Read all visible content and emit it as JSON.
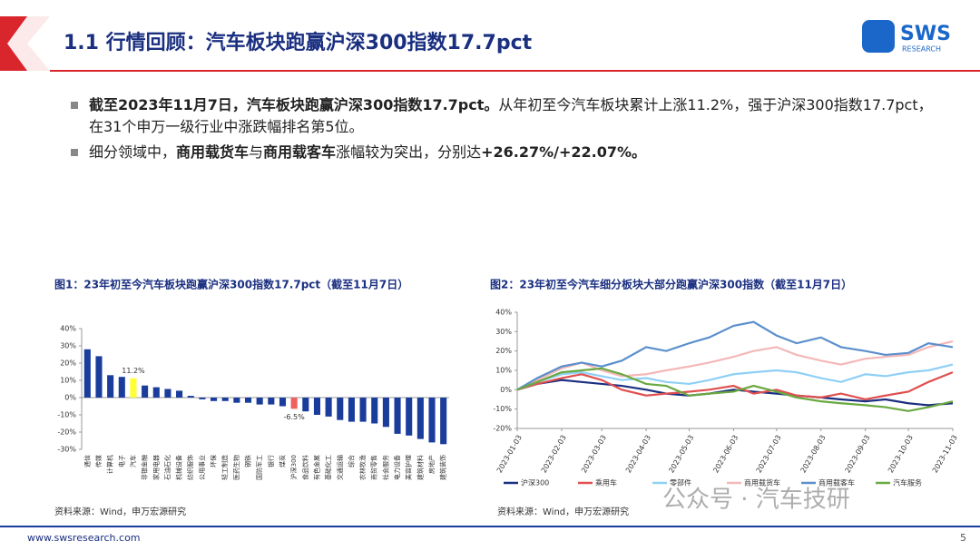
{
  "header": {
    "title": "1.1 行情回顾：汽车板块跑赢沪深300指数17.7pct",
    "logo": "SWS",
    "logo_sub": "RESEARCH"
  },
  "bullets": [
    {
      "segments": [
        {
          "text": "截至2023年11月7日，汽车板块跑赢沪深300指数17.7pct。",
          "bold": true
        },
        {
          "text": "从年初至今汽车板块累计上涨11.2%，强于沪深300指数17.7pct，在31个申万一级行业中涨跌幅排名第5位。",
          "bold": false
        }
      ]
    },
    {
      "segments": [
        {
          "text": "细分领域中，",
          "bold": false
        },
        {
          "text": "商用载货车",
          "bold": true
        },
        {
          "text": "与",
          "bold": false
        },
        {
          "text": "商用载客车",
          "bold": true
        },
        {
          "text": "涨幅较为突出，分别达",
          "bold": false
        },
        {
          "text": "+26.27%/+22.07%。",
          "bold": true
        }
      ]
    }
  ],
  "chart_data": [
    {
      "type": "bar",
      "title": "图1：23年初至今汽车板块跑赢沪深300指数17.7pct（截至11月7日）",
      "source": "资料来源：Wind，申万宏源研究",
      "categories": [
        "通信",
        "传媒",
        "计算机",
        "电子",
        "汽车",
        "非银金融",
        "家用电器",
        "石油石化",
        "机械设备",
        "纺织服饰",
        "公用事业",
        "环保",
        "轻工制造",
        "医药生物",
        "钢铁",
        "国防军工",
        "银行",
        "煤炭",
        "沪深300",
        "食品饮料",
        "有色金属",
        "基础化工",
        "交通运输",
        "综合",
        "农林牧渔",
        "商贸零售",
        "社会服务",
        "电力设备",
        "美容护理",
        "建筑材料",
        "房地产",
        "建筑装饰"
      ],
      "values": [
        28,
        24,
        13,
        12,
        11.2,
        7,
        6,
        5,
        4,
        1,
        -1,
        -2,
        -2,
        -3,
        -3,
        -4,
        -4,
        -5,
        -6.5,
        -8,
        -10,
        -11,
        -13,
        -14,
        -14,
        -15,
        -17,
        -21,
        -22,
        -24,
        -26,
        -27
      ],
      "value_labels": [
        null,
        null,
        null,
        null,
        "11.2%",
        null,
        null,
        null,
        null,
        null,
        null,
        null,
        null,
        null,
        null,
        null,
        null,
        null,
        "-6.5%",
        null,
        null,
        null,
        null,
        null,
        null,
        null,
        null,
        null,
        null,
        null,
        null,
        null
      ],
      "colors": [
        "#1a3d9c",
        "#1a3d9c",
        "#1a3d9c",
        "#1a3d9c",
        "#ffff33",
        "#1a3d9c",
        "#1a3d9c",
        "#1a3d9c",
        "#1a3d9c",
        "#1a3d9c",
        "#1a3d9c",
        "#1a3d9c",
        "#1a3d9c",
        "#1a3d9c",
        "#1a3d9c",
        "#1a3d9c",
        "#1a3d9c",
        "#1a3d9c",
        "#f06060",
        "#1a3d9c",
        "#1a3d9c",
        "#1a3d9c",
        "#1a3d9c",
        "#1a3d9c",
        "#1a3d9c",
        "#1a3d9c",
        "#1a3d9c",
        "#1a3d9c",
        "#1a3d9c",
        "#1a3d9c",
        "#1a3d9c",
        "#1a3d9c"
      ],
      "ylim": [
        -30,
        40
      ],
      "yticks": [
        {
          "value": -30,
          "label": "-30%"
        },
        {
          "value": -20,
          "label": "-20%"
        },
        {
          "value": -10,
          "label": "-10%"
        },
        {
          "value": 0,
          "label": "0%"
        },
        {
          "value": 10,
          "label": "10%"
        },
        {
          "value": 20,
          "label": "20%"
        },
        {
          "value": 30,
          "label": "30%"
        },
        {
          "value": 40,
          "label": "40%"
        }
      ]
    },
    {
      "type": "line",
      "title": "图2：23年初至今汽车细分板块大部分跑赢沪深300指数（截至11月7日）",
      "source": "资料来源：Wind，申万宏源研究",
      "x": [
        "2023-01-03",
        "2023-01-17",
        "2023-02-03",
        "2023-02-17",
        "2023-03-03",
        "2023-03-17",
        "2023-04-03",
        "2023-04-17",
        "2023-05-03",
        "2023-05-17",
        "2023-06-03",
        "2023-06-17",
        "2023-07-03",
        "2023-07-17",
        "2023-08-03",
        "2023-08-17",
        "2023-09-03",
        "2023-09-17",
        "2023-10-03",
        "2023-10-17",
        "2023-11-03"
      ],
      "xlim": [
        "2023-01-03",
        "2023-11-03"
      ],
      "xticks": [
        "2023-01-03",
        "2023-02-03",
        "2023-03-03",
        "2023-04-03",
        "2023-05-03",
        "2023-06-03",
        "2023-07-03",
        "2023-08-03",
        "2023-09-03",
        "2023-10-03",
        "2023-11-03"
      ],
      "series": [
        {
          "name": "沪深300",
          "color": "#1a2f80",
          "values": [
            0,
            3,
            5,
            4,
            3,
            2,
            0,
            -2,
            -3,
            -2,
            0,
            -1,
            -2,
            -3,
            -4,
            -5,
            -6,
            -5,
            -7,
            -8,
            -7
          ]
        },
        {
          "name": "乘用车",
          "color": "#e05050",
          "values": [
            0,
            3,
            6,
            8,
            5,
            0,
            -3,
            -2,
            -1,
            0,
            2,
            -2,
            0,
            -3,
            -4,
            -2,
            -5,
            -3,
            -1,
            4,
            9
          ]
        },
        {
          "name": "零部件",
          "color": "#8fd0f5",
          "values": [
            0,
            4,
            8,
            9,
            7,
            5,
            6,
            4,
            3,
            5,
            8,
            9,
            10,
            9,
            6,
            4,
            8,
            7,
            9,
            10,
            13
          ]
        },
        {
          "name": "商用载货车",
          "color": "#f4b8b8",
          "values": [
            0,
            5,
            11,
            14,
            10,
            7,
            8,
            10,
            12,
            14,
            17,
            20,
            22,
            18,
            15,
            13,
            16,
            17,
            18,
            22,
            25
          ]
        },
        {
          "name": "商用载客车",
          "color": "#5b8fcc",
          "values": [
            0,
            6,
            12,
            14,
            12,
            15,
            22,
            20,
            24,
            27,
            33,
            35,
            28,
            24,
            27,
            22,
            20,
            18,
            19,
            24,
            22
          ]
        },
        {
          "name": "汽车服务",
          "color": "#6aa840",
          "values": [
            0,
            4,
            9,
            10,
            11,
            8,
            3,
            2,
            -3,
            -2,
            -1,
            2,
            -1,
            -4,
            -6,
            -7,
            -8,
            -9,
            -11,
            -9,
            -6
          ]
        }
      ],
      "ylim": [
        -20,
        40
      ],
      "yticks": [
        {
          "value": -20,
          "label": "-20%"
        },
        {
          "value": -10,
          "label": "-10%"
        },
        {
          "value": 0,
          "label": "0%"
        },
        {
          "value": 10,
          "label": "10%"
        },
        {
          "value": 20,
          "label": "20%"
        },
        {
          "value": 30,
          "label": "30%"
        },
        {
          "value": 40,
          "label": "40%"
        }
      ]
    }
  ],
  "watermark": "公众号 · 汽车技研",
  "footer": {
    "url": "www.swsresearch.com",
    "page": "5"
  }
}
